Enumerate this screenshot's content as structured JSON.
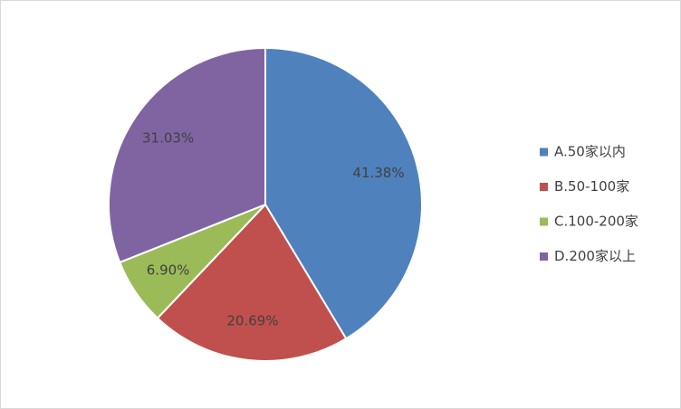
{
  "chart_data": {
    "type": "pie",
    "categories": [
      "A.50家以内",
      "B.50-100家",
      "C.100-200家",
      "D.200家以上"
    ],
    "values": [
      41.38,
      20.69,
      6.9,
      31.03
    ],
    "value_labels": [
      "41.38%",
      "20.69%",
      "6.90%",
      "31.03%"
    ],
    "colors": [
      "#4f81bd",
      "#c0504d",
      "#9bbb59",
      "#8064a2"
    ],
    "legend": "right"
  }
}
